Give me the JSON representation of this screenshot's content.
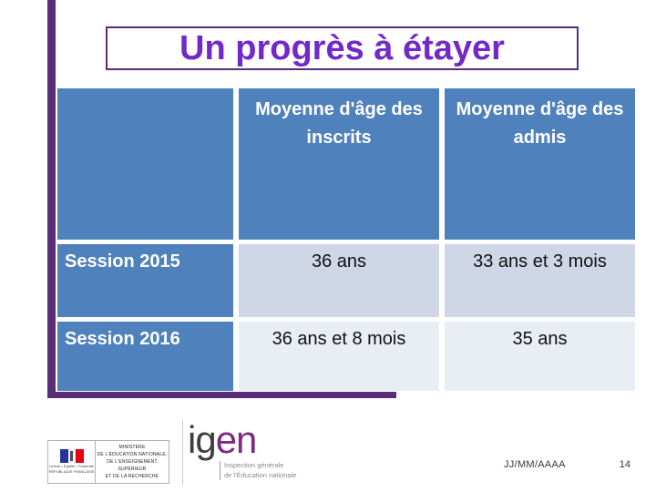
{
  "slide": {
    "title": "Un progrès à étayer",
    "date_placeholder": "JJ/MM/AAAA",
    "page_number": "14"
  },
  "table": {
    "headers": [
      "",
      "Moyenne d'âge des inscrits",
      "Moyenne d'âge des admis"
    ],
    "rows": [
      {
        "label": "Session 2015",
        "inscrits": "36 ans",
        "admis": "33 ans et 3 mois"
      },
      {
        "label": "Session 2016",
        "inscrits": "36 ans et 8 mois",
        "admis": "35 ans"
      }
    ]
  },
  "footer": {
    "ministry_logo": {
      "flag_motto_line1": "Liberté • Égalité • Fraternité",
      "flag_motto_line2": "RÉPUBLIQUE FRANÇAISE",
      "lines": [
        "MINISTÈRE",
        "DE L'ÉDUCATION NATIONALE,",
        "DE L'ENSEIGNEMENT SUPÉRIEUR",
        "ET DE LA RECHERCHE"
      ]
    },
    "igen_logo": {
      "word_part1": "ig",
      "word_part2": "en",
      "subtitle_line1": "Inspection générale",
      "subtitle_line2": "de l'Éducation nationale"
    }
  },
  "colors": {
    "accent_blue": "#4f81bd",
    "band_row1": "#cfd7e7",
    "band_row2": "#e9edf4",
    "frame_purple": "#5a2d78",
    "title_purple": "#7329c9",
    "igen_purple": "#7d2b82",
    "flag_blue": "#26339f",
    "flag_red": "#e1000f"
  }
}
